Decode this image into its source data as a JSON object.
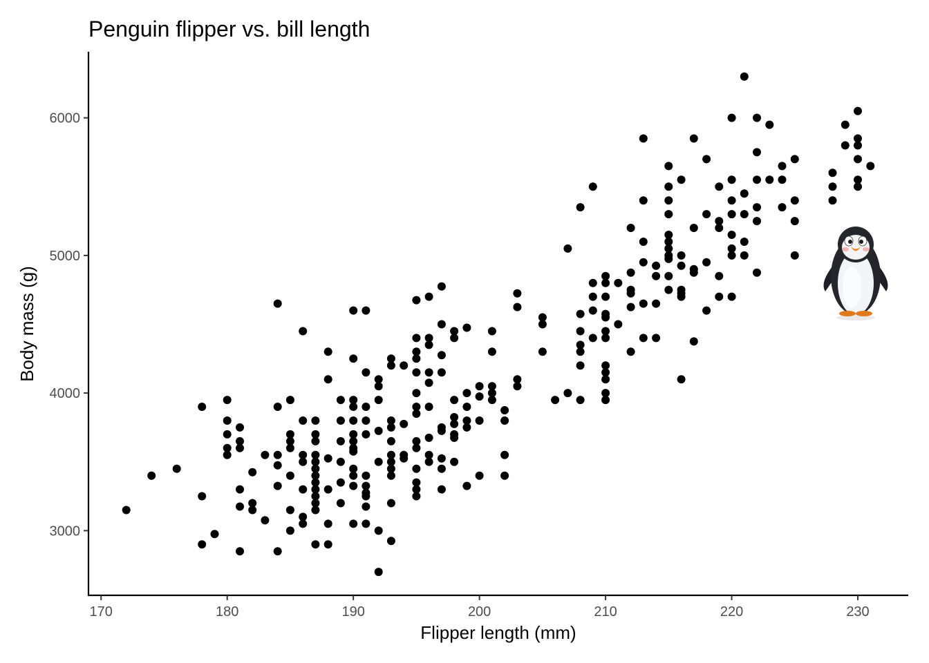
{
  "chart_data": {
    "type": "scatter",
    "title": "Penguin flipper vs. bill length",
    "xlabel": "Flipper length (mm)",
    "ylabel": "Body mass (g)",
    "xlim": [
      169,
      234
    ],
    "ylim": [
      2530,
      6480
    ],
    "x_ticks": [
      170,
      180,
      190,
      200,
      210,
      220,
      230
    ],
    "y_ticks": [
      3000,
      4000,
      5000,
      6000
    ],
    "grid": false,
    "legend": "none",
    "point_color": "#000000",
    "decoration": "penguin-cartoon",
    "points": [
      [
        172,
        3150
      ],
      [
        174,
        3400
      ],
      [
        176,
        3450
      ],
      [
        178,
        3250
      ],
      [
        178,
        2900
      ],
      [
        178,
        3900
      ],
      [
        179,
        2975
      ],
      [
        180,
        3950
      ],
      [
        180,
        3800
      ],
      [
        180,
        3700
      ],
      [
        180,
        3600
      ],
      [
        180,
        3550
      ],
      [
        181,
        3750
      ],
      [
        181,
        3650
      ],
      [
        181,
        3600
      ],
      [
        181,
        3300
      ],
      [
        181,
        3175
      ],
      [
        181,
        2850
      ],
      [
        182,
        3425
      ],
      [
        182,
        3200
      ],
      [
        182,
        3150
      ],
      [
        183,
        3550
      ],
      [
        183,
        3075
      ],
      [
        184,
        4650
      ],
      [
        184,
        3900
      ],
      [
        184,
        3550
      ],
      [
        184,
        3475
      ],
      [
        184,
        3325
      ],
      [
        184,
        2850
      ],
      [
        185,
        3950
      ],
      [
        185,
        3700
      ],
      [
        185,
        3650
      ],
      [
        185,
        3600
      ],
      [
        185,
        3400
      ],
      [
        185,
        3150
      ],
      [
        185,
        3000
      ],
      [
        186,
        4450
      ],
      [
        186,
        3800
      ],
      [
        186,
        3550
      ],
      [
        186,
        3500
      ],
      [
        186,
        3300
      ],
      [
        186,
        3100
      ],
      [
        186,
        3050
      ],
      [
        187,
        3800
      ],
      [
        187,
        3700
      ],
      [
        187,
        3650
      ],
      [
        187,
        3550
      ],
      [
        187,
        3500
      ],
      [
        187,
        3450
      ],
      [
        187,
        3400
      ],
      [
        187,
        3350
      ],
      [
        187,
        3300
      ],
      [
        187,
        3250
      ],
      [
        187,
        3200
      ],
      [
        187,
        3150
      ],
      [
        187,
        2900
      ],
      [
        188,
        4300
      ],
      [
        188,
        4100
      ],
      [
        188,
        3525
      ],
      [
        188,
        3300
      ],
      [
        188,
        3050
      ],
      [
        188,
        2900
      ],
      [
        189,
        3950
      ],
      [
        189,
        3800
      ],
      [
        189,
        3650
      ],
      [
        189,
        3500
      ],
      [
        189,
        3350
      ],
      [
        189,
        3200
      ],
      [
        190,
        4600
      ],
      [
        190,
        4250
      ],
      [
        190,
        3950
      ],
      [
        190,
        3900
      ],
      [
        190,
        3800
      ],
      [
        190,
        3700
      ],
      [
        190,
        3650
      ],
      [
        190,
        3600
      ],
      [
        190,
        3575
      ],
      [
        190,
        3450
      ],
      [
        190,
        3400
      ],
      [
        190,
        3325
      ],
      [
        190,
        3050
      ],
      [
        191,
        4600
      ],
      [
        191,
        4150
      ],
      [
        191,
        3900
      ],
      [
        191,
        3800
      ],
      [
        191,
        3700
      ],
      [
        191,
        3400
      ],
      [
        191,
        3325
      ],
      [
        191,
        3275
      ],
      [
        191,
        3250
      ],
      [
        191,
        3175
      ],
      [
        191,
        3050
      ],
      [
        192,
        4100
      ],
      [
        192,
        4050
      ],
      [
        192,
        3950
      ],
      [
        192,
        3725
      ],
      [
        192,
        3500
      ],
      [
        192,
        3000
      ],
      [
        192,
        2700
      ],
      [
        193,
        4250
      ],
      [
        193,
        4200
      ],
      [
        193,
        3800
      ],
      [
        193,
        3750
      ],
      [
        193,
        3650
      ],
      [
        193,
        3550
      ],
      [
        193,
        3500
      ],
      [
        193,
        3450
      ],
      [
        193,
        3400
      ],
      [
        193,
        3200
      ],
      [
        193,
        2925
      ],
      [
        194,
        4200
      ],
      [
        194,
        3775
      ],
      [
        194,
        3550
      ],
      [
        194,
        3525
      ],
      [
        195,
        4675
      ],
      [
        195,
        4400
      ],
      [
        195,
        4300
      ],
      [
        195,
        4250
      ],
      [
        195,
        4150
      ],
      [
        195,
        4000
      ],
      [
        195,
        3900
      ],
      [
        195,
        3850
      ],
      [
        195,
        3650
      ],
      [
        195,
        3600
      ],
      [
        195,
        3450
      ],
      [
        195,
        3350
      ],
      [
        195,
        3300
      ],
      [
        195,
        3250
      ],
      [
        196,
        4700
      ],
      [
        196,
        4400
      ],
      [
        196,
        4350
      ],
      [
        196,
        4150
      ],
      [
        196,
        4075
      ],
      [
        196,
        3900
      ],
      [
        196,
        3675
      ],
      [
        196,
        3550
      ],
      [
        196,
        3500
      ],
      [
        197,
        4775
      ],
      [
        197,
        4500
      ],
      [
        197,
        4275
      ],
      [
        197,
        4150
      ],
      [
        197,
        3750
      ],
      [
        197,
        3725
      ],
      [
        197,
        3525
      ],
      [
        197,
        3450
      ],
      [
        197,
        3300
      ],
      [
        198,
        4450
      ],
      [
        198,
        4400
      ],
      [
        198,
        3950
      ],
      [
        198,
        3825
      ],
      [
        198,
        3775
      ],
      [
        198,
        3700
      ],
      [
        198,
        3675
      ],
      [
        198,
        3500
      ],
      [
        199,
        4475
      ],
      [
        199,
        4000
      ],
      [
        199,
        3900
      ],
      [
        199,
        3800
      ],
      [
        199,
        3750
      ],
      [
        199,
        3325
      ],
      [
        200,
        4050
      ],
      [
        200,
        3975
      ],
      [
        200,
        3800
      ],
      [
        200,
        3400
      ],
      [
        201,
        4450
      ],
      [
        201,
        4300
      ],
      [
        201,
        4050
      ],
      [
        201,
        4000
      ],
      [
        201,
        3950
      ],
      [
        202,
        3875
      ],
      [
        202,
        3800
      ],
      [
        202,
        3550
      ],
      [
        202,
        3400
      ],
      [
        203,
        4725
      ],
      [
        203,
        4625
      ],
      [
        203,
        4100
      ],
      [
        203,
        4050
      ],
      [
        205,
        4550
      ],
      [
        205,
        4500
      ],
      [
        205,
        4300
      ],
      [
        206,
        3950
      ],
      [
        207,
        5050
      ],
      [
        207,
        4000
      ],
      [
        208,
        5350
      ],
      [
        208,
        4575
      ],
      [
        208,
        4450
      ],
      [
        208,
        4350
      ],
      [
        208,
        4300
      ],
      [
        208,
        4200
      ],
      [
        208,
        3950
      ],
      [
        209,
        5500
      ],
      [
        209,
        4800
      ],
      [
        209,
        4700
      ],
      [
        209,
        4600
      ],
      [
        209,
        4400
      ],
      [
        210,
        4850
      ],
      [
        210,
        4800
      ],
      [
        210,
        4700
      ],
      [
        210,
        4575
      ],
      [
        210,
        4550
      ],
      [
        210,
        4450
      ],
      [
        210,
        4400
      ],
      [
        210,
        4200
      ],
      [
        210,
        4150
      ],
      [
        210,
        4100
      ],
      [
        210,
        4000
      ],
      [
        210,
        3950
      ],
      [
        211,
        4800
      ],
      [
        211,
        4500
      ],
      [
        212,
        5200
      ],
      [
        212,
        4875
      ],
      [
        212,
        4750
      ],
      [
        212,
        4725
      ],
      [
        212,
        4625
      ],
      [
        212,
        4300
      ],
      [
        213,
        5850
      ],
      [
        213,
        5400
      ],
      [
        213,
        5100
      ],
      [
        213,
        4950
      ],
      [
        213,
        4650
      ],
      [
        213,
        4400
      ],
      [
        214,
        4925
      ],
      [
        214,
        4850
      ],
      [
        214,
        4650
      ],
      [
        214,
        4400
      ],
      [
        215,
        5650
      ],
      [
        215,
        5500
      ],
      [
        215,
        5400
      ],
      [
        215,
        5300
      ],
      [
        215,
        5150
      ],
      [
        215,
        5100
      ],
      [
        215,
        5050
      ],
      [
        215,
        5000
      ],
      [
        215,
        4975
      ],
      [
        215,
        4850
      ],
      [
        215,
        4750
      ],
      [
        216,
        5550
      ],
      [
        216,
        5000
      ],
      [
        216,
        4925
      ],
      [
        216,
        4750
      ],
      [
        216,
        4725
      ],
      [
        216,
        4700
      ],
      [
        216,
        4100
      ],
      [
        217,
        5850
      ],
      [
        217,
        5200
      ],
      [
        217,
        4900
      ],
      [
        217,
        4875
      ],
      [
        217,
        4375
      ],
      [
        218,
        5700
      ],
      [
        218,
        5300
      ],
      [
        218,
        4950
      ],
      [
        218,
        4600
      ],
      [
        219,
        5500
      ],
      [
        219,
        5250
      ],
      [
        219,
        5200
      ],
      [
        219,
        4850
      ],
      [
        219,
        4700
      ],
      [
        220,
        6000
      ],
      [
        220,
        5550
      ],
      [
        220,
        5400
      ],
      [
        220,
        5300
      ],
      [
        220,
        5150
      ],
      [
        220,
        5050
      ],
      [
        220,
        5000
      ],
      [
        220,
        4700
      ],
      [
        221,
        6300
      ],
      [
        221,
        5450
      ],
      [
        221,
        5300
      ],
      [
        221,
        5100
      ],
      [
        221,
        5000
      ],
      [
        222,
        6000
      ],
      [
        222,
        5750
      ],
      [
        222,
        5550
      ],
      [
        222,
        5350
      ],
      [
        222,
        5250
      ],
      [
        222,
        4875
      ],
      [
        223,
        5950
      ],
      [
        223,
        5550
      ],
      [
        224,
        5650
      ],
      [
        224,
        5550
      ],
      [
        224,
        5350
      ],
      [
        225,
        5700
      ],
      [
        225,
        5400
      ],
      [
        225,
        5250
      ],
      [
        225,
        5000
      ],
      [
        228,
        5600
      ],
      [
        228,
        5500
      ],
      [
        228,
        5400
      ],
      [
        229,
        5950
      ],
      [
        229,
        5800
      ],
      [
        230,
        6050
      ],
      [
        230,
        5850
      ],
      [
        230,
        5800
      ],
      [
        230,
        5700
      ],
      [
        230,
        5550
      ],
      [
        230,
        5500
      ],
      [
        231,
        5650
      ]
    ]
  }
}
